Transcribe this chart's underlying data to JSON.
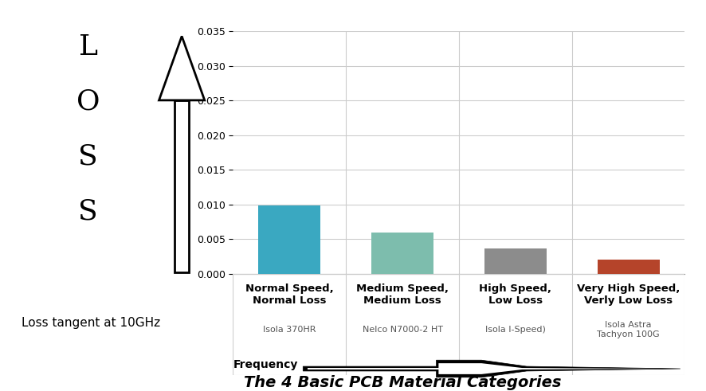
{
  "categories": [
    "Normal Speed,\nNormal Loss",
    "Medium Speed,\nMedium Loss",
    "High Speed,\nLow Loss",
    "Very High Speed,\nVerly Low Loss"
  ],
  "values": [
    0.0098,
    0.006,
    0.0036,
    0.002
  ],
  "bar_colors": [
    "#3aa8c1",
    "#7dbdad",
    "#8c8c8c",
    "#b5442a"
  ],
  "subtitles": [
    "Isola 370HR",
    "Nelco N7000-2 HT",
    "Isola I-Speed)",
    "Isola Astra\nTachyon 100G"
  ],
  "ylim": [
    0,
    0.035
  ],
  "yticks": [
    0,
    0.005,
    0.01,
    0.015,
    0.02,
    0.025,
    0.03,
    0.035
  ],
  "ylabel_letters": [
    "L",
    "O",
    "S",
    "S"
  ],
  "title": "The 4 Basic PCB Material Categories",
  "loss_tangent_label": "Loss tangent at 10GHz",
  "frequency_label": "Frequency",
  "background_color": "#ffffff",
  "grid_color": "#cccccc",
  "bar_width": 0.55
}
